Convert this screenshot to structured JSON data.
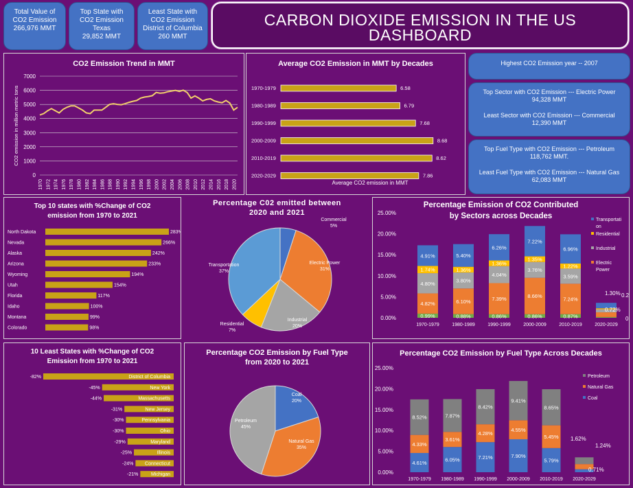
{
  "kpis": [
    {
      "label": "Total Value of CO2 Emission",
      "value": "266,976 MMT"
    },
    {
      "label": "Top State with CO2 Emission",
      "sub": "Texas",
      "value": "29,852 MMT"
    },
    {
      "label": "Least State with CO2 Emission",
      "sub": "District of Columbia",
      "value": "260  MMT"
    }
  ],
  "dashboard_title": "CARBON DIOXIDE EMISSION IN THE US DASHBOARD",
  "insights": {
    "highest_year": "Highest CO2 Emission year -- 2007",
    "top_sector": "Top Sector with CO2 Emission --- Electric Power",
    "top_sector_value": "94,328 MMT",
    "least_sector": "Least Sector with CO2 Emission --- Commercial",
    "least_sector_value": "12,390 MMT",
    "top_fuel": "Top Fuel Type with CO2 Emission --- Petroleum",
    "top_fuel_value": "118,762  MMT.",
    "least_fuel": "Least Fuel Type with CO2 Emission --- Natural Gas",
    "least_fuel_value": "62,083 MMT"
  },
  "colors": {
    "background": "#6b0f75",
    "card": "#4472c4",
    "bar_gold": "#c9a217",
    "line": "#f2d16b",
    "elec": "#ed7d31",
    "ind": "#a5a5a5",
    "res": "#ffc000",
    "trans": "#4472c4",
    "com": "#4472c4"
  },
  "chart_data": [
    {
      "type": "line",
      "title": "CO2 Emission Trend in MMT",
      "ylabel": "CO2 emission in million metric tons",
      "ylim": [
        0,
        7000
      ],
      "yticks": [
        0,
        1000,
        2000,
        3000,
        4000,
        5000,
        6000,
        7000
      ],
      "x_tick_labels": [
        "1970",
        "1972",
        "1974",
        "1976",
        "1978",
        "1980",
        "1982",
        "1984",
        "1986",
        "1988",
        "1990",
        "1992",
        "1994",
        "1996",
        "1998",
        "2000",
        "2002",
        "2004",
        "2006",
        "2008",
        "2010",
        "2012",
        "2014",
        "2016",
        "2018",
        "2020"
      ],
      "x": [
        1970,
        1971,
        1972,
        1973,
        1974,
        1975,
        1976,
        1977,
        1978,
        1979,
        1980,
        1981,
        1982,
        1983,
        1984,
        1985,
        1986,
        1987,
        1988,
        1989,
        1990,
        1991,
        1992,
        1993,
        1994,
        1995,
        1996,
        1997,
        1998,
        1999,
        2000,
        2001,
        2002,
        2003,
        2004,
        2005,
        2006,
        2007,
        2008,
        2009,
        2010,
        2011,
        2012,
        2013,
        2014,
        2015,
        2016,
        2017,
        2018,
        2019,
        2020,
        2021
      ],
      "values": [
        4250,
        4350,
        4550,
        4700,
        4550,
        4400,
        4650,
        4800,
        4900,
        4900,
        4750,
        4600,
        4400,
        4350,
        4600,
        4600,
        4600,
        4800,
        5000,
        5050,
        5000,
        4980,
        5050,
        5150,
        5220,
        5280,
        5450,
        5520,
        5560,
        5620,
        5850,
        5800,
        5820,
        5900,
        5950,
        6000,
        5920,
        6010,
        5850,
        5450,
        5600,
        5450,
        5250,
        5350,
        5400,
        5250,
        5170,
        5120,
        5280,
        5100,
        4600,
        4800
      ]
    },
    {
      "type": "bar",
      "orientation": "horizontal",
      "title": "Average CO2 Emission in MMT by Decades",
      "xlabel": "Average CO2 emission in MMT",
      "categories": [
        "1970-1979",
        "1980-1989",
        "1990-1999",
        "2000-2009",
        "2010-2019",
        "2020-2029"
      ],
      "values": [
        6.58,
        6.79,
        7.68,
        8.68,
        8.62,
        7.86
      ],
      "labels": [
        "6.58",
        "6.79",
        "7.68",
        "8.68",
        "8.62",
        "7.86"
      ]
    },
    {
      "type": "bar",
      "orientation": "horizontal",
      "title": "Top 10 states with %Change of CO2 emission from 1970 to 2021",
      "categories": [
        "North Dakota",
        "Nevada",
        "Alaska",
        "Arizona",
        "Wyoming",
        "Utah",
        "Florida",
        "Idaho",
        "Montana",
        "Colorado"
      ],
      "values": [
        283,
        266,
        242,
        233,
        194,
        154,
        117,
        100,
        99,
        98
      ],
      "labels": [
        "283%",
        "266%",
        "242%",
        "233%",
        "194%",
        "154%",
        "117%",
        "100%",
        "99%",
        "98%"
      ]
    },
    {
      "type": "pie",
      "title": "Percentage C02 emitted between 2020 and 2021",
      "slices": [
        {
          "name": "Commercial",
          "value": 5,
          "label": "5%",
          "color": "#4472c4"
        },
        {
          "name": "Electric Power",
          "value": 31,
          "label": "31%",
          "color": "#ed7d31"
        },
        {
          "name": "Industrial",
          "value": 20,
          "label": "20%",
          "color": "#a5a5a5"
        },
        {
          "name": "Residential",
          "value": 7,
          "label": "7%",
          "color": "#ffc000"
        },
        {
          "name": "Transportation",
          "value": 37,
          "label": "37%",
          "color": "#5b9bd5"
        }
      ]
    },
    {
      "type": "bar",
      "stacked": true,
      "title": "Percentage  Emission of CO2 Contributed by Sectors across Decades",
      "categories": [
        "1970-1979",
        "1980-1989",
        "1990-1999",
        "2000-2009",
        "2010-2019",
        "2020-2029"
      ],
      "ylim": [
        0,
        25
      ],
      "yticks": [
        "0.00%",
        "5.00%",
        "10.00%",
        "15.00%",
        "20.00%",
        "25.00%"
      ],
      "series": [
        {
          "name": "Commercial",
          "values": [
            0.99,
            0.88,
            0.86,
            0.86,
            0.87,
            0.18
          ],
          "labels": [
            "0.99%",
            "0.88%",
            "0.86%",
            "0.86%",
            "0.87%",
            "0.18%"
          ],
          "color": "#70ad47"
        },
        {
          "name": "Electric Power",
          "values": [
            4.82,
            6.1,
            7.39,
            8.66,
            7.24,
            1.12
          ],
          "labels": [
            "4.82%",
            "6.10%",
            "7.39%",
            "8.66%",
            "7.24%",
            "1.12%"
          ],
          "color": "#ed7d31"
        },
        {
          "name": "Industrial",
          "values": [
            4.8,
            3.8,
            4.04,
            3.76,
            3.59,
            0.72
          ],
          "labels": [
            "4.80%",
            "3.80%",
            "4.04%",
            "3.76%",
            "3.59%",
            "0.72%"
          ],
          "color": "#a5a5a5"
        },
        {
          "name": "Residential",
          "values": [
            1.74,
            1.36,
            1.36,
            1.35,
            1.22,
            0.24
          ],
          "labels": [
            "1.74%",
            "1.36%",
            "1.36%",
            "1.35%",
            "1.22%",
            "0.24%"
          ],
          "color": "#ffc000"
        },
        {
          "name": "Transportation",
          "values": [
            4.91,
            5.4,
            6.26,
            7.22,
            6.96,
            1.3
          ],
          "labels": [
            "4.91%",
            "5.40%",
            "6.26%",
            "7.22%",
            "6.96%",
            "1.30%"
          ],
          "color": "#4472c4"
        }
      ],
      "legend": [
        {
          "name": "Transportati\non",
          "color": "#4472c4"
        },
        {
          "name": "Residential",
          "color": "#ffc000"
        },
        {
          "name": "Industrial",
          "color": "#a5a5a5"
        },
        {
          "name": "Electric\nPower",
          "color": "#ed7d31"
        }
      ]
    },
    {
      "type": "bar",
      "orientation": "horizontal",
      "title": "10 Least States with %Change of CO2 Emission from 1970 to 2021",
      "categories": [
        "District of Columbia",
        "New York",
        "Massachusetts",
        "New Jersey",
        "Pennsylvania",
        "Ohio",
        "Maryland",
        "Illinois",
        "Connecticut",
        "Michigan"
      ],
      "values": [
        -82,
        -45,
        -44,
        -31,
        -30,
        -30,
        -29,
        -25,
        -24,
        -21
      ],
      "labels": [
        "-82%",
        "-45%",
        "-44%",
        "-31%",
        "-30%",
        "-30%",
        "-29%",
        "-25%",
        "-24%",
        "-21%"
      ]
    },
    {
      "type": "pie",
      "title": "Percentage CO2 Emission by Fuel Type from 2020 to 2021",
      "slices": [
        {
          "name": "Coal",
          "value": 20,
          "label": "20%",
          "color": "#4472c4"
        },
        {
          "name": "Natural Gas",
          "value": 35,
          "label": "35%",
          "color": "#ed7d31"
        },
        {
          "name": "Petroleum",
          "value": 45,
          "label": "45%",
          "color": "#a5a5a5"
        }
      ]
    },
    {
      "type": "bar",
      "stacked": true,
      "title": "Percentage CO2 Emission by Fuel Type Across Decades",
      "categories": [
        "1970-1979",
        "1980-1989",
        "1990-1999",
        "2000-2009",
        "2010-2019",
        "2020-2029"
      ],
      "ylim": [
        0,
        25
      ],
      "yticks": [
        "0.00%",
        "5.00%",
        "10.00%",
        "15.00%",
        "20.00%",
        "25.00%"
      ],
      "series": [
        {
          "name": "Coal",
          "values": [
            4.61,
            6.05,
            7.21,
            7.9,
            5.79,
            0.71
          ],
          "labels": [
            "4.61%",
            "6.05%",
            "7.21%",
            "7.90%",
            "5.79%",
            "0.71%"
          ],
          "color": "#4472c4"
        },
        {
          "name": "Natural Gas",
          "values": [
            4.33,
            3.61,
            4.28,
            4.55,
            5.45,
            1.24
          ],
          "labels": [
            "4.33%",
            "3.61%",
            "4.28%",
            "4.55%",
            "5.45%",
            "1.24%"
          ],
          "color": "#ed7d31"
        },
        {
          "name": "Petroleum",
          "values": [
            8.52,
            7.87,
            8.42,
            9.41,
            8.65,
            1.62
          ],
          "labels": [
            "8.52%",
            "7.87%",
            "8.42%",
            "9.41%",
            "8.65%",
            "1.62%"
          ],
          "color": "#808080"
        }
      ],
      "legend": [
        {
          "name": "Petroleum",
          "color": "#808080"
        },
        {
          "name": "Natural Gas",
          "color": "#ed7d31"
        },
        {
          "name": "Coal",
          "color": "#4472c4"
        }
      ]
    }
  ]
}
